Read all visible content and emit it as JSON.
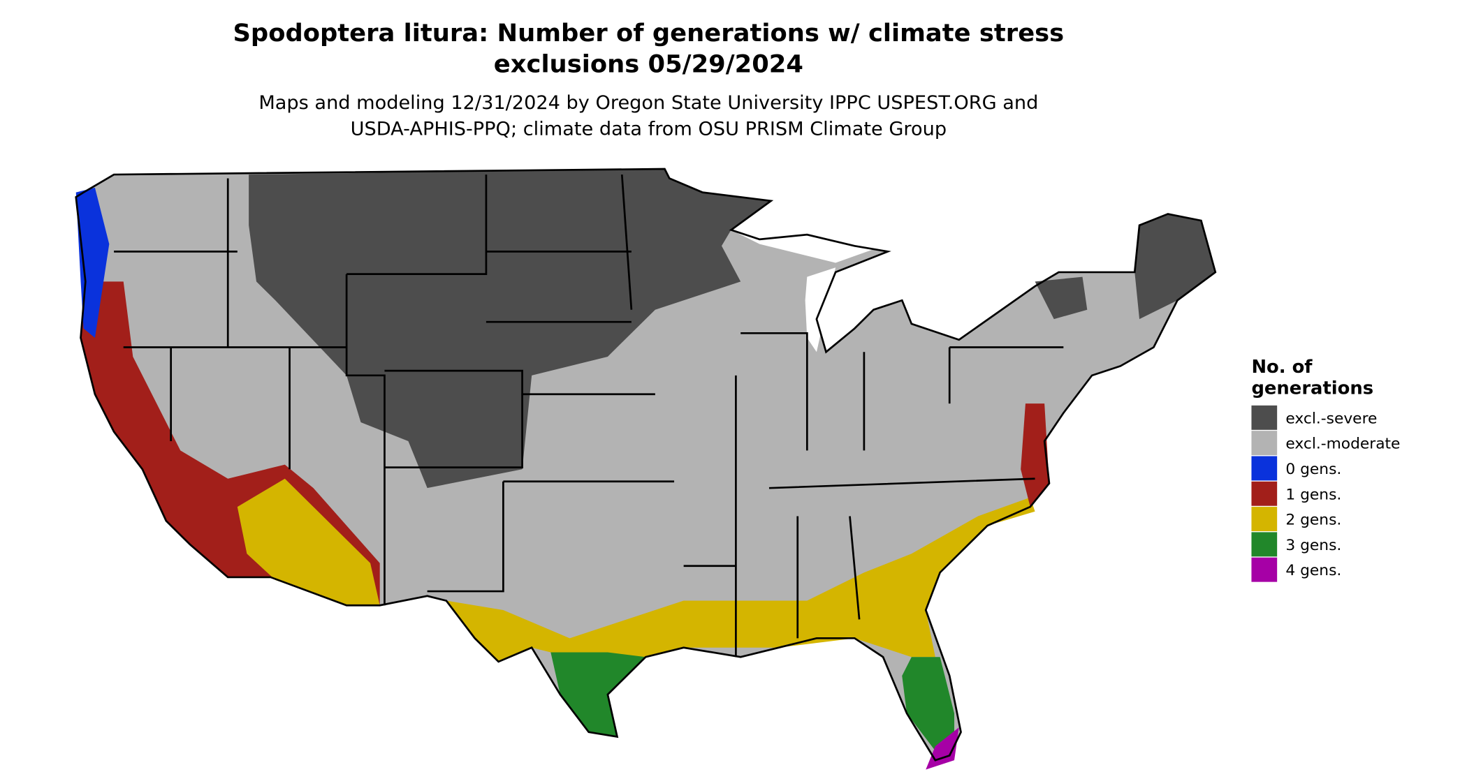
{
  "title": [
    "Spodoptera litura: Number of generations w/ climate stress",
    "exclusions 05/29/2024"
  ],
  "subtitle": [
    "Maps and modeling 12/31/2024 by Oregon State University IPPC USPEST.ORG and",
    "USDA-APHIS-PPQ; climate data from OSU PRISM Climate Group"
  ],
  "legend": {
    "title": [
      "No. of",
      "generations"
    ],
    "items": [
      {
        "label": "excl.-severe",
        "color": "#4d4d4d"
      },
      {
        "label": "excl.-moderate",
        "color": "#b3b3b3"
      },
      {
        "label": "0 gens.",
        "color": "#0a32dc"
      },
      {
        "label": "1 gens.",
        "color": "#a21f1a"
      },
      {
        "label": "2 gens.",
        "color": "#d4b500"
      },
      {
        "label": "3 gens.",
        "color": "#21872a"
      },
      {
        "label": "4 gens.",
        "color": "#a600a6"
      }
    ]
  }
}
